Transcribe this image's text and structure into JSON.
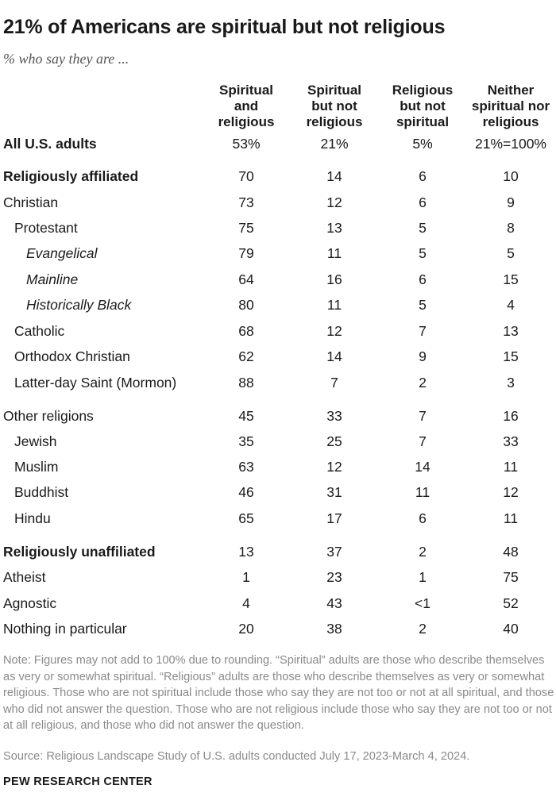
{
  "title": "21% of Americans are spiritual but not religious",
  "subtitle": "% who say they are ...",
  "chart_data": {
    "type": "table",
    "columns": [
      "Spiritual and religious",
      "Spiritual but not religious",
      "Religious but not spiritual",
      "Neither spiritual nor religious"
    ],
    "column_lines": [
      [
        "Spiritual",
        "and",
        "religious"
      ],
      [
        "Spiritual",
        "but not",
        "religious"
      ],
      [
        "Religious",
        "but not",
        "spiritual"
      ],
      [
        "Neither",
        "spiritual nor",
        "religious"
      ]
    ],
    "rows": [
      {
        "label": "All U.S. adults",
        "style": "bold",
        "indent": 0,
        "values": [
          "53%",
          "21%",
          "5%",
          "21%=100%"
        ]
      },
      {
        "label": "Religiously affiliated",
        "style": "bold",
        "indent": 0,
        "values": [
          "70",
          "14",
          "6",
          "10"
        ]
      },
      {
        "label": "Christian",
        "style": "normal",
        "indent": 0,
        "values": [
          "73",
          "12",
          "6",
          "9"
        ]
      },
      {
        "label": "Protestant",
        "style": "normal",
        "indent": 1,
        "values": [
          "75",
          "13",
          "5",
          "8"
        ]
      },
      {
        "label": "Evangelical",
        "style": "italic",
        "indent": 2,
        "values": [
          "79",
          "11",
          "5",
          "5"
        ]
      },
      {
        "label": "Mainline",
        "style": "italic",
        "indent": 2,
        "values": [
          "64",
          "16",
          "6",
          "15"
        ]
      },
      {
        "label": "Historically Black",
        "style": "italic",
        "indent": 2,
        "values": [
          "80",
          "11",
          "5",
          "4"
        ]
      },
      {
        "label": "Catholic",
        "style": "normal",
        "indent": 1,
        "values": [
          "68",
          "12",
          "7",
          "13"
        ]
      },
      {
        "label": "Orthodox Christian",
        "style": "normal",
        "indent": 1,
        "values": [
          "62",
          "14",
          "9",
          "15"
        ]
      },
      {
        "label": "Latter-day Saint (Mormon)",
        "style": "normal",
        "indent": 1,
        "values": [
          "88",
          "7",
          "2",
          "3"
        ]
      },
      {
        "label": "Other religions",
        "style": "normal",
        "indent": 0,
        "values": [
          "45",
          "33",
          "7",
          "16"
        ]
      },
      {
        "label": "Jewish",
        "style": "normal",
        "indent": 1,
        "values": [
          "35",
          "25",
          "7",
          "33"
        ]
      },
      {
        "label": "Muslim",
        "style": "normal",
        "indent": 1,
        "values": [
          "63",
          "12",
          "14",
          "11"
        ]
      },
      {
        "label": "Buddhist",
        "style": "normal",
        "indent": 1,
        "values": [
          "46",
          "31",
          "11",
          "12"
        ]
      },
      {
        "label": "Hindu",
        "style": "normal",
        "indent": 1,
        "values": [
          "65",
          "17",
          "6",
          "11"
        ]
      },
      {
        "label": "Religiously unaffiliated",
        "style": "bold",
        "indent": 0,
        "values": [
          "13",
          "37",
          "2",
          "48"
        ]
      },
      {
        "label": "Atheist",
        "style": "normal",
        "indent": 0,
        "values": [
          "1",
          "23",
          "1",
          "75"
        ]
      },
      {
        "label": "Agnostic",
        "style": "normal",
        "indent": 0,
        "values": [
          "4",
          "43",
          "<1",
          "52"
        ]
      },
      {
        "label": "Nothing in particular",
        "style": "normal",
        "indent": 0,
        "values": [
          "20",
          "38",
          "2",
          "40"
        ]
      }
    ]
  },
  "note": "Note: Figures may not add to 100% due to rounding. “Spiritual” adults are those who describe themselves as very or somewhat spiritual. “Religious” adults are those who describe themselves as very or somewhat religious. Those who are not spiritual include those who say they are not too or not at all spiritual, and those who did not answer the question. Those who are not religious include those who say they are not too or not at all religious, and those who did not answer the question.",
  "source": "Source: Religious Landscape Study of U.S. adults conducted July 17, 2023-March 4, 2024.",
  "brand": "PEW RESEARCH CENTER",
  "colors": {
    "text": "#1a1a1a",
    "muted": "#8a8a8a",
    "subtitle": "#555555"
  }
}
